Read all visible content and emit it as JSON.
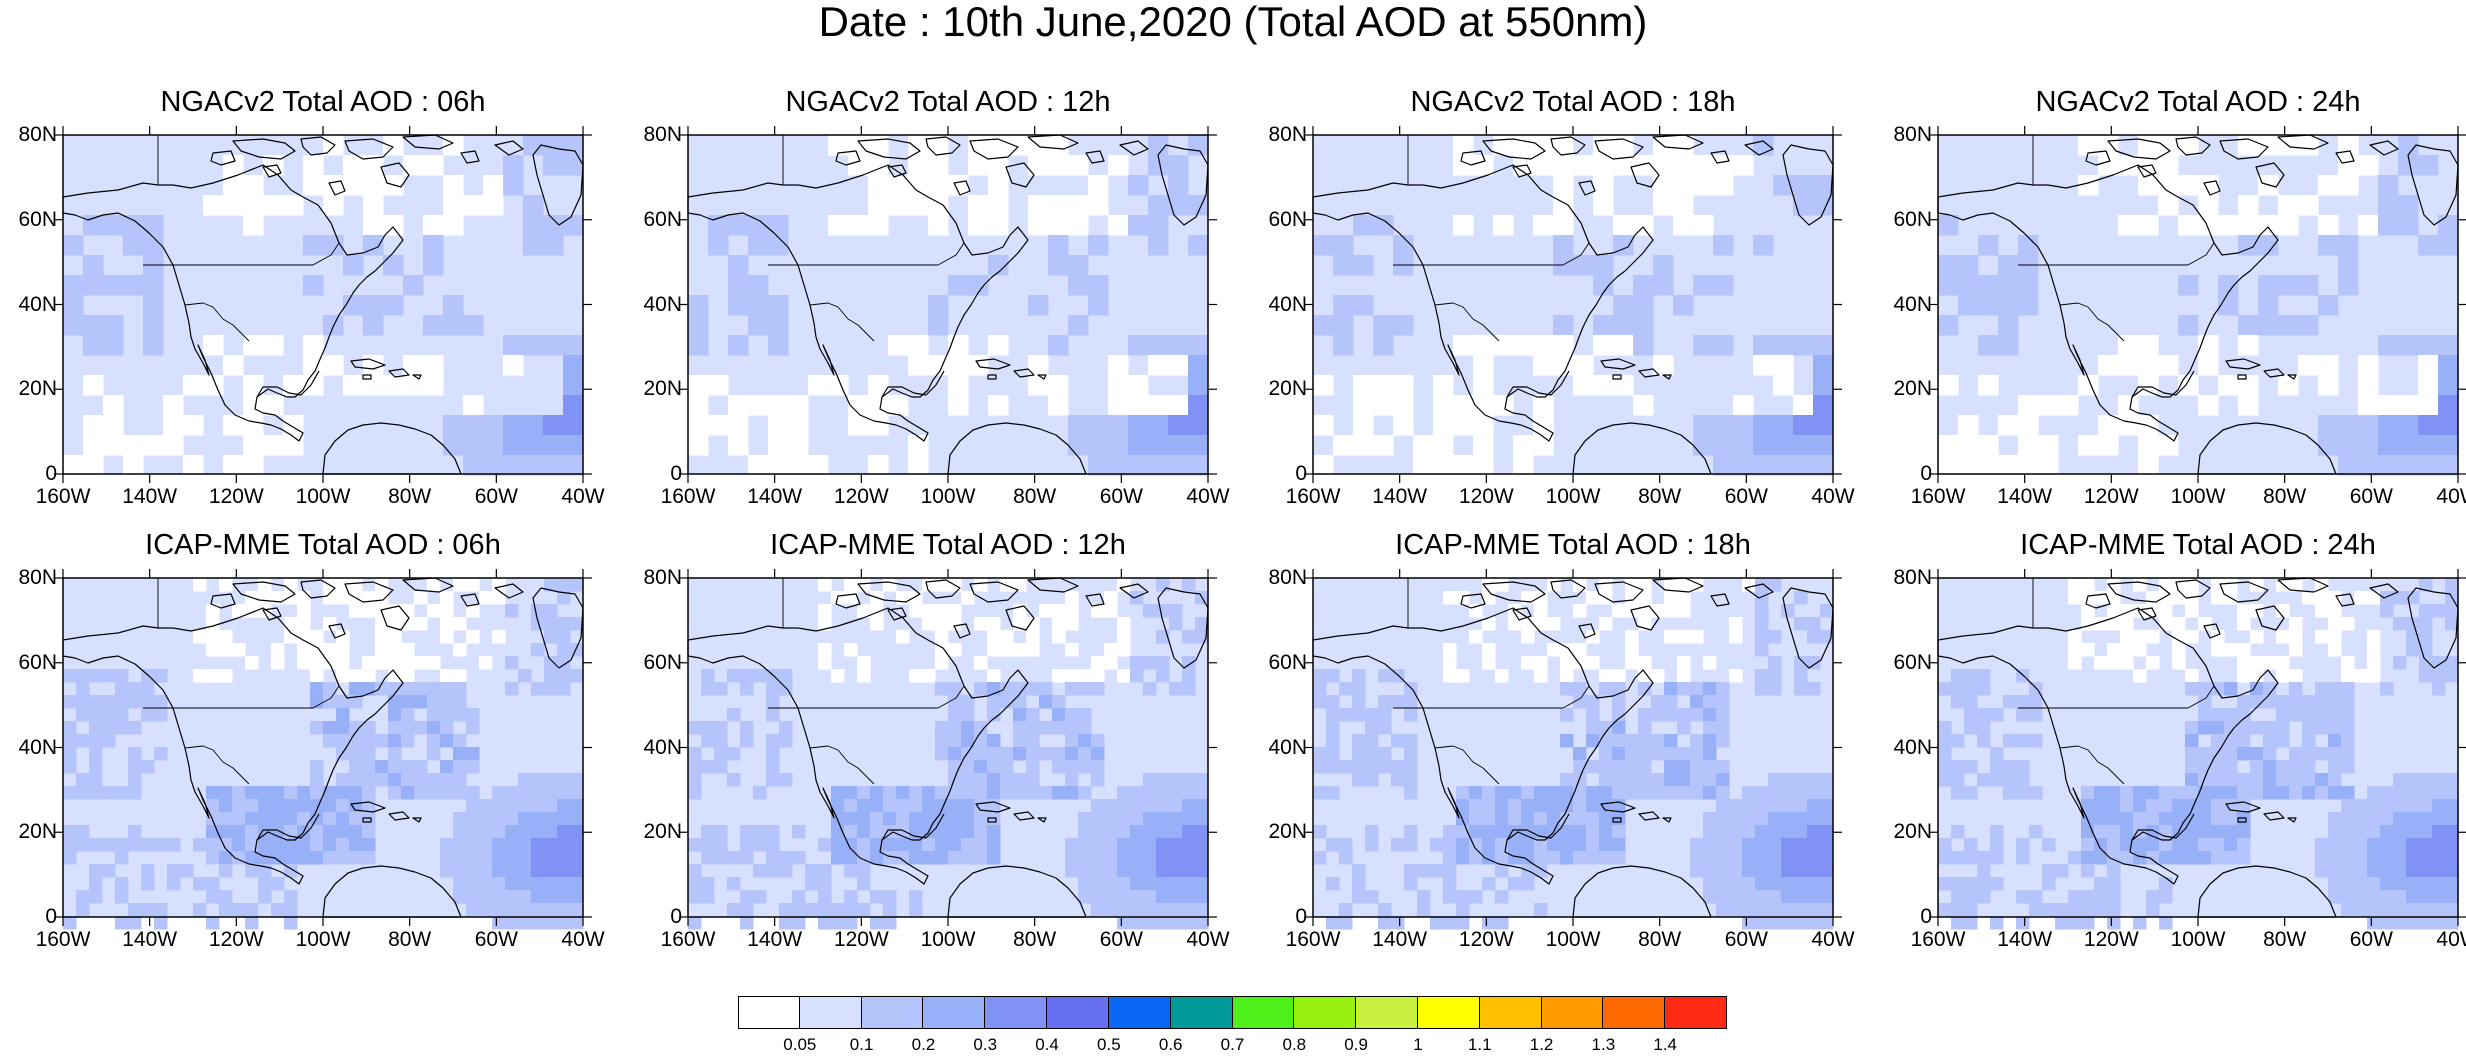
{
  "title": "Date : 10th June,2020 (Total AOD at 550nm)",
  "lat_labels": [
    "80N",
    "60N",
    "40N",
    "20N",
    "0"
  ],
  "lon_labels": [
    "160W",
    "140W",
    "120W",
    "100W",
    "80W",
    "60W",
    "40W"
  ],
  "panels": [
    {
      "title": "NGACv2 Total AOD : 06h",
      "model": "NGACv2",
      "hour": "06h"
    },
    {
      "title": "NGACv2 Total AOD : 12h",
      "model": "NGACv2",
      "hour": "12h"
    },
    {
      "title": "NGACv2 Total AOD : 18h",
      "model": "NGACv2",
      "hour": "18h"
    },
    {
      "title": "NGACv2 Total AOD : 24h",
      "model": "NGACv2",
      "hour": "24h"
    },
    {
      "title": "ICAP-MME Total AOD : 06h",
      "model": "ICAP-MME",
      "hour": "06h"
    },
    {
      "title": "ICAP-MME Total AOD : 12h",
      "model": "ICAP-MME",
      "hour": "12h"
    },
    {
      "title": "ICAP-MME Total AOD : 18h",
      "model": "ICAP-MME",
      "hour": "18h"
    },
    {
      "title": "ICAP-MME Total AOD : 24h",
      "model": "ICAP-MME",
      "hour": "24h"
    }
  ],
  "colorbar": {
    "levels": [
      "0.05",
      "0.1",
      "0.2",
      "0.3",
      "0.4",
      "0.5",
      "0.6",
      "0.7",
      "0.8",
      "0.9",
      "1",
      "1.1",
      "1.2",
      "1.3",
      "1.4"
    ],
    "colors": [
      "#ffffff",
      "#d8e0ff",
      "#b5c5fb",
      "#98b0f8",
      "#8093f5",
      "#6670f0",
      "#0a66f5",
      "#009a9a",
      "#4ef01a",
      "#96f00e",
      "#c8f040",
      "#ffff00",
      "#ffc000",
      "#ff9a00",
      "#ff6a00",
      "#ff2a14"
    ]
  }
}
